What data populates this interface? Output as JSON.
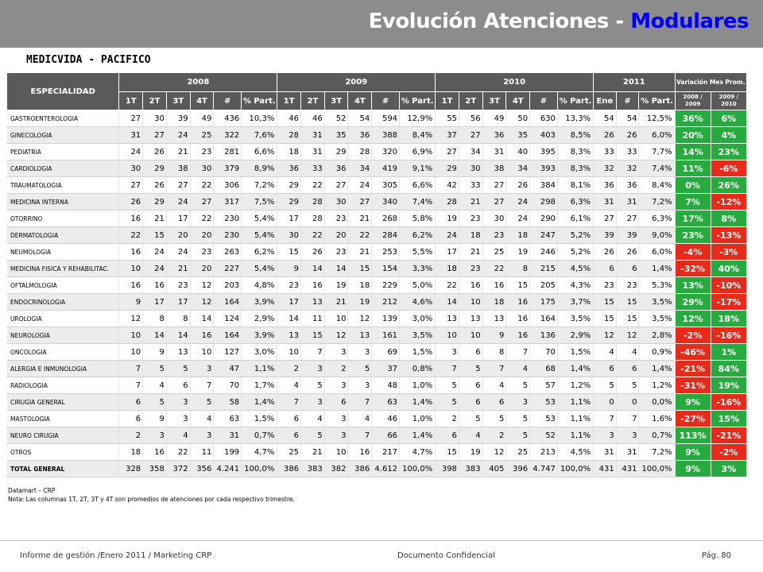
{
  "page": {
    "title_prefix": "Evolución Atenciones - ",
    "title_highlight": "Modulares",
    "subtitle": "MEDICVIDA - PACIFICO"
  },
  "table": {
    "col_especialidad": "ESPECIALIDAD",
    "years": [
      "2008",
      "2009",
      "2010",
      "2011"
    ],
    "variacion_header": "Variación Mes Prom.",
    "sub_2008": [
      "1T",
      "2T",
      "3T",
      "4T",
      "#",
      "% Part."
    ],
    "sub_2009": [
      "1T",
      "2T",
      "3T",
      "4T",
      "#",
      "% Part."
    ],
    "sub_2010": [
      "1T",
      "2T",
      "3T",
      "4T",
      "#",
      "% Part."
    ],
    "sub_2011": [
      "Ene",
      "#",
      "% Part."
    ],
    "var_cols": [
      [
        "2008 /",
        "2009"
      ],
      [
        "2009 /",
        "2010"
      ]
    ],
    "rows": [
      [
        "GASTROENTEROLOGIA",
        "27",
        "30",
        "39",
        "49",
        "436",
        "10,3%",
        "46",
        "46",
        "52",
        "54",
        "594",
        "12,9%",
        "55",
        "56",
        "49",
        "50",
        "630",
        "13,3%",
        "54",
        "54",
        "12,5%",
        "36%",
        "6%"
      ],
      [
        "GINECOLOGIA",
        "31",
        "27",
        "24",
        "25",
        "322",
        "7,6%",
        "28",
        "31",
        "35",
        "36",
        "388",
        "8,4%",
        "37",
        "27",
        "36",
        "35",
        "403",
        "8,5%",
        "26",
        "26",
        "6,0%",
        "20%",
        "4%"
      ],
      [
        "PEDIATRIA",
        "24",
        "26",
        "21",
        "23",
        "281",
        "6,6%",
        "18",
        "31",
        "29",
        "28",
        "320",
        "6,9%",
        "27",
        "34",
        "31",
        "40",
        "395",
        "8,3%",
        "33",
        "33",
        "7,7%",
        "14%",
        "23%"
      ],
      [
        "CARDIOLOGIA",
        "30",
        "29",
        "38",
        "30",
        "379",
        "8,9%",
        "36",
        "33",
        "36",
        "34",
        "419",
        "9,1%",
        "29",
        "30",
        "38",
        "34",
        "393",
        "8,3%",
        "32",
        "32",
        "7,4%",
        "11%",
        "-6%"
      ],
      [
        "TRAUMATOLOGIA",
        "27",
        "26",
        "27",
        "22",
        "306",
        "7,2%",
        "29",
        "22",
        "27",
        "24",
        "305",
        "6,6%",
        "42",
        "33",
        "27",
        "26",
        "384",
        "8,1%",
        "36",
        "36",
        "8,4%",
        "0%",
        "26%"
      ],
      [
        "MEDICINA INTERNA",
        "26",
        "29",
        "24",
        "27",
        "317",
        "7,5%",
        "29",
        "28",
        "30",
        "27",
        "340",
        "7,4%",
        "28",
        "21",
        "27",
        "24",
        "298",
        "6,3%",
        "31",
        "31",
        "7,2%",
        "7%",
        "-12%"
      ],
      [
        "OTORRINO",
        "16",
        "21",
        "17",
        "22",
        "230",
        "5,4%",
        "17",
        "28",
        "23",
        "21",
        "268",
        "5,8%",
        "19",
        "23",
        "30",
        "24",
        "290",
        "6,1%",
        "27",
        "27",
        "6,3%",
        "17%",
        "8%"
      ],
      [
        "DERMATOLOGIA",
        "22",
        "15",
        "20",
        "20",
        "230",
        "5,4%",
        "30",
        "22",
        "20",
        "22",
        "284",
        "6,2%",
        "24",
        "18",
        "23",
        "18",
        "247",
        "5,2%",
        "39",
        "39",
        "9,0%",
        "23%",
        "-13%"
      ],
      [
        "NEUMOLOGIA",
        "16",
        "24",
        "24",
        "23",
        "263",
        "6,2%",
        "15",
        "26",
        "23",
        "21",
        "253",
        "5,5%",
        "17",
        "21",
        "25",
        "19",
        "246",
        "5,2%",
        "26",
        "26",
        "6,0%",
        "-4%",
        "-3%"
      ],
      [
        "MEDICINA FISICA Y REHABILITAC.",
        "10",
        "24",
        "21",
        "20",
        "227",
        "5,4%",
        "9",
        "14",
        "14",
        "15",
        "154",
        "3,3%",
        "18",
        "23",
        "22",
        "8",
        "215",
        "4,5%",
        "6",
        "6",
        "1,4%",
        "-32%",
        "40%"
      ],
      [
        "OFTALMOLOGIA",
        "16",
        "16",
        "23",
        "12",
        "203",
        "4,8%",
        "23",
        "16",
        "19",
        "18",
        "229",
        "5,0%",
        "22",
        "16",
        "16",
        "15",
        "205",
        "4,3%",
        "23",
        "23",
        "5,3%",
        "13%",
        "-10%"
      ],
      [
        "ENDOCRINOLOGIA",
        "9",
        "17",
        "17",
        "12",
        "164",
        "3,9%",
        "17",
        "13",
        "21",
        "19",
        "212",
        "4,6%",
        "14",
        "10",
        "18",
        "16",
        "175",
        "3,7%",
        "15",
        "15",
        "3,5%",
        "29%",
        "-17%"
      ],
      [
        "UROLOGIA",
        "12",
        "8",
        "8",
        "14",
        "124",
        "2,9%",
        "14",
        "11",
        "10",
        "12",
        "139",
        "3,0%",
        "13",
        "13",
        "13",
        "16",
        "164",
        "3,5%",
        "15",
        "15",
        "3,5%",
        "12%",
        "18%"
      ],
      [
        "NEUROLOGIA",
        "10",
        "14",
        "14",
        "16",
        "164",
        "3,9%",
        "13",
        "15",
        "12",
        "13",
        "161",
        "3,5%",
        "10",
        "10",
        "9",
        "16",
        "136",
        "2,9%",
        "12",
        "12",
        "2,8%",
        "-2%",
        "-16%"
      ],
      [
        "ONCOLOGIA",
        "10",
        "9",
        "13",
        "10",
        "127",
        "3,0%",
        "10",
        "7",
        "3",
        "3",
        "69",
        "1,5%",
        "3",
        "6",
        "8",
        "7",
        "70",
        "1,5%",
        "4",
        "4",
        "0,9%",
        "-46%",
        "1%"
      ],
      [
        "ALERGIA E INMUNOLOGIA",
        "7",
        "5",
        "5",
        "3",
        "47",
        "1,1%",
        "2",
        "3",
        "2",
        "5",
        "37",
        "0,8%",
        "7",
        "5",
        "7",
        "4",
        "68",
        "1,4%",
        "6",
        "6",
        "1,4%",
        "-21%",
        "84%"
      ],
      [
        "RADIOLOGIA",
        "7",
        "4",
        "6",
        "7",
        "70",
        "1,7%",
        "4",
        "5",
        "3",
        "3",
        "48",
        "1,0%",
        "5",
        "6",
        "4",
        "5",
        "57",
        "1,2%",
        "5",
        "5",
        "1,2%",
        "-31%",
        "19%"
      ],
      [
        "CIRUGIA GENERAL",
        "6",
        "5",
        "3",
        "5",
        "58",
        "1,4%",
        "7",
        "3",
        "6",
        "7",
        "63",
        "1,4%",
        "5",
        "6",
        "6",
        "3",
        "53",
        "1,1%",
        "0",
        "0",
        "0,0%",
        "9%",
        "-16%"
      ],
      [
        "MASTOLOGIA",
        "6",
        "9",
        "3",
        "4",
        "63",
        "1,5%",
        "6",
        "4",
        "3",
        "4",
        "46",
        "1,0%",
        "2",
        "5",
        "5",
        "5",
        "53",
        "1,1%",
        "7",
        "7",
        "1,6%",
        "-27%",
        "15%"
      ],
      [
        "NEURO CIRUGIA",
        "2",
        "3",
        "4",
        "3",
        "31",
        "0,7%",
        "6",
        "5",
        "3",
        "7",
        "66",
        "1,4%",
        "6",
        "4",
        "2",
        "5",
        "52",
        "1,1%",
        "3",
        "3",
        "0,7%",
        "113%",
        "-21%"
      ],
      [
        "OTROS",
        "18",
        "16",
        "22",
        "11",
        "199",
        "4,7%",
        "25",
        "21",
        "10",
        "16",
        "217",
        "4,7%",
        "15",
        "19",
        "12",
        "25",
        "213",
        "4,5%",
        "31",
        "31",
        "7,2%",
        "9%",
        "-2%"
      ],
      [
        "TOTAL GENERAL",
        "328",
        "358",
        "372",
        "356",
        "4.241",
        "100,0%",
        "386",
        "383",
        "382",
        "386",
        "4.612",
        "100,0%",
        "398",
        "383",
        "405",
        "396",
        "4.747",
        "100,0%",
        "431",
        "431",
        "100,0%",
        "9%",
        "3%"
      ]
    ],
    "var_colors": {
      "positive": "#27ab3e",
      "negative": "#e82a1a"
    }
  },
  "notes": {
    "source": "Datamart – CRP",
    "note": "Nota: Las columnas 1T, 2T,  3T y 4T  son promedios de atenciones por cada respectivo trimestre."
  },
  "footer": {
    "left": "Informe de gestión /Enero 2011 / Marketing CRP",
    "center": "Documento Confidencial",
    "right": "Pág. 80"
  }
}
